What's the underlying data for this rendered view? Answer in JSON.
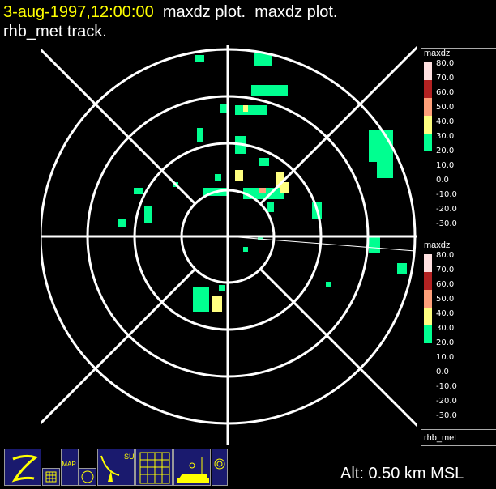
{
  "header": {
    "datetime": "3-aug-1997,12:00:00",
    "title_rest": "  maxdz plot.  maxdz plot.",
    "line2": "rhb_met track."
  },
  "legends": [
    {
      "name": "maxdz",
      "labels": [
        "80.0",
        "70.0",
        "60.0",
        "50.0",
        "40.0",
        "30.0",
        "20.0",
        "10.0",
        "0.0",
        "-10.0",
        "-20.0",
        "-30.0"
      ]
    },
    {
      "name": "maxdz",
      "labels": [
        "80.0",
        "70.0",
        "60.0",
        "50.0",
        "40.0",
        "30.0",
        "20.0",
        "10.0",
        "0.0",
        "-10.0",
        "-20.0",
        "-30.0"
      ]
    }
  ],
  "legend_colors": [
    "#ffe0e0",
    "#b22222",
    "#ffa07a",
    "#ffff80",
    "#00ff90"
  ],
  "platform": "rhb_met",
  "toolbar": [
    {
      "icon": "zoom-icon"
    },
    {
      "icon": "grid-small-icon"
    },
    {
      "icon": "map-icon",
      "label": "MAP"
    },
    {
      "icon": "circle-icon"
    },
    {
      "icon": "radar-sur-icon",
      "label": "SUR"
    },
    {
      "icon": "radar-grid-icon"
    },
    {
      "icon": "ship-icon"
    },
    {
      "icon": "reticle-icon"
    }
  ],
  "altitude": "Alt: 0.50 km MSL",
  "colors": {
    "title": "#ffff00",
    "toolbar_bg": "#1a1a6e",
    "icon": "#ffff00",
    "echo": "#00ff90"
  }
}
